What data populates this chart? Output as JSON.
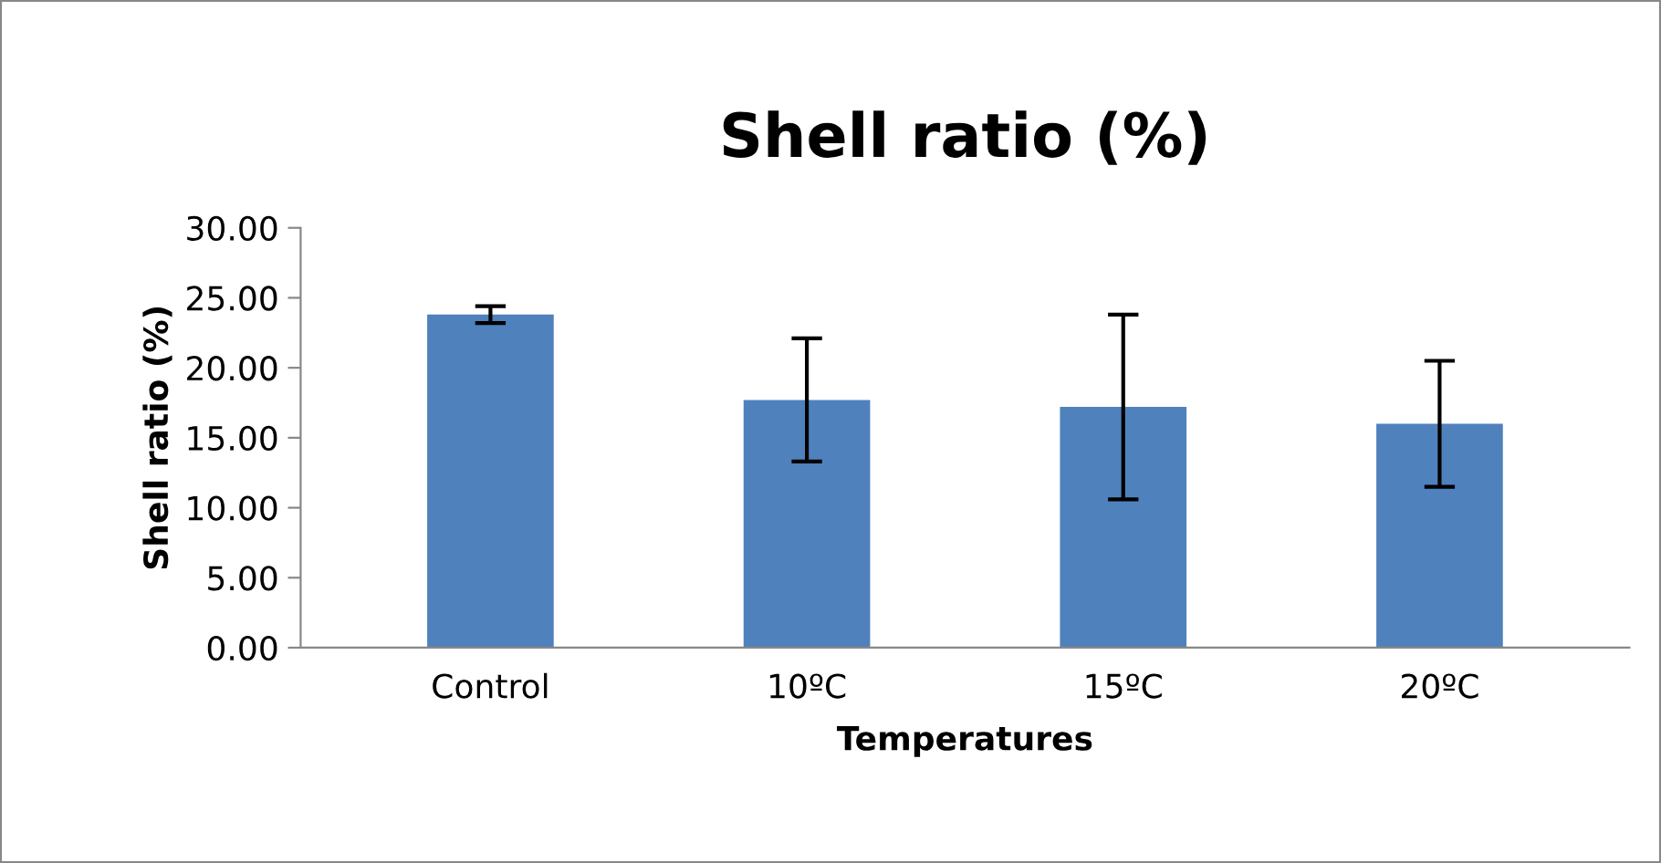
{
  "chart_data": {
    "type": "bar",
    "title": "Shell ratio (%)",
    "xlabel": "Temperatures",
    "ylabel": "Shell ratio (%)",
    "categories": [
      "Control",
      "10ºC",
      "15ºC",
      "20ºC"
    ],
    "values": [
      23.8,
      17.7,
      17.2,
      16.0
    ],
    "errors": [
      0.6,
      4.4,
      6.6,
      4.5
    ],
    "color": "#4f81bd",
    "ylim": [
      0,
      30
    ],
    "yticks": [
      {
        "value": 0,
        "label": "0.00"
      },
      {
        "value": 5,
        "label": "5.00"
      },
      {
        "value": 10,
        "label": "10.00"
      },
      {
        "value": 15,
        "label": "15.00"
      },
      {
        "value": 20,
        "label": "20.00"
      },
      {
        "value": 25,
        "label": "25.00"
      },
      {
        "value": 30,
        "label": "30.00"
      }
    ],
    "grid": false,
    "legend": false
  }
}
